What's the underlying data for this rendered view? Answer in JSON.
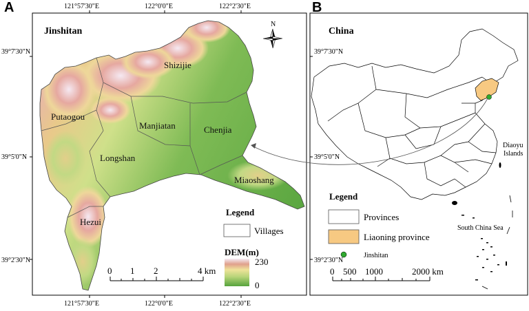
{
  "panel_a": {
    "letter": "A",
    "title": "Jinshitan",
    "lon_ticks": [
      "121°57'30\"E",
      "122°0'0\"E",
      "122°2'30\"E"
    ],
    "lat_ticks": [
      "39°7'30\"N",
      "39°5'0\"N",
      "39°2'30\"N"
    ],
    "villages": [
      "Shizijie",
      "Putaogou",
      "Manjiatan",
      "Chenjia",
      "Longshan",
      "Miaoshang",
      "Hezui"
    ],
    "north_label": "N",
    "legend": {
      "title": "Legend",
      "villages_label": "Villages",
      "dem_title": "DEM(m)",
      "dem_max": "230",
      "dem_min": "0"
    },
    "scalebar": {
      "labels": [
        "0",
        "1",
        "2",
        "4 km"
      ]
    }
  },
  "panel_b": {
    "letter": "B",
    "title": "China",
    "lat_ticks": [
      "39°7'30\"N",
      "39°5'0\"N",
      "39°2'30\"N"
    ],
    "labels": {
      "diaoyu": [
        "Diaoyu",
        "Islands"
      ],
      "south_china_sea": "South China Sea"
    },
    "legend": {
      "title": "Legend",
      "provinces": "Provinces",
      "liaoning": "Liaoning province",
      "jinshitan": "Jinshitan"
    },
    "scalebar": {
      "labels": [
        "0",
        "500",
        "1000",
        "2000 km"
      ]
    }
  },
  "colors": {
    "dem_low": "#5fa845",
    "dem_mid": "#e8e39a",
    "dem_high": "#f3eaf3",
    "liaoning": "#f7c982",
    "jinshitan_dot": "#2fa92f"
  }
}
